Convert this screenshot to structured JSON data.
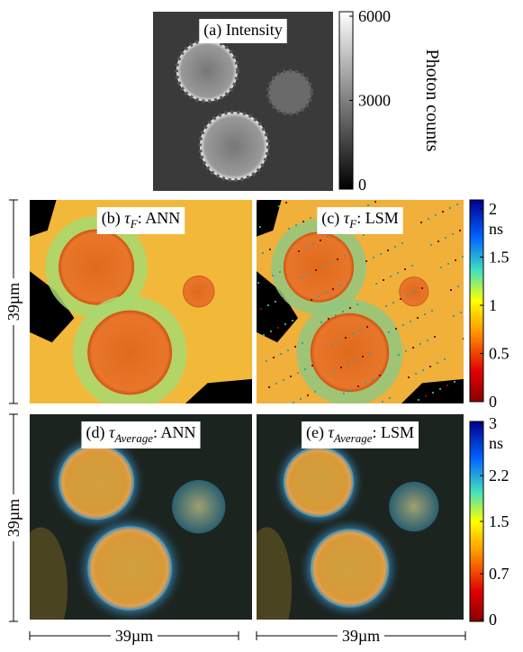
{
  "panels": [
    {
      "prefix": "(a) Intensity"
    },
    {
      "prefix": "(b) ",
      "symbol": "τ",
      "subscript": "F",
      "suffix": ": ANN"
    },
    {
      "prefix": "(c) ",
      "symbol": "τ",
      "subscript": "F",
      "suffix": ": LSM"
    },
    {
      "prefix": "(d) ",
      "symbol": "τ",
      "subscript": "Average",
      "suffix": ": ANN"
    },
    {
      "prefix": "(e) ",
      "symbol": "τ",
      "subscript": "Average",
      "suffix": ": LSM"
    }
  ],
  "colorbars": [
    {
      "label": "Photon counts",
      "lim": [
        0,
        6000
      ],
      "ticks": [
        0,
        3000,
        6000
      ]
    },
    {
      "unit": "ns",
      "lim": [
        0,
        2
      ],
      "ticks": [
        0,
        0.5,
        1,
        1.5,
        2
      ]
    },
    {
      "unit": "ns",
      "lim": [
        0,
        3
      ],
      "ticks": [
        0,
        0.7,
        1.5,
        2.2,
        3
      ]
    }
  ],
  "scale_bars": [
    "39µm",
    "39µm",
    "39µm",
    "39µm"
  ]
}
